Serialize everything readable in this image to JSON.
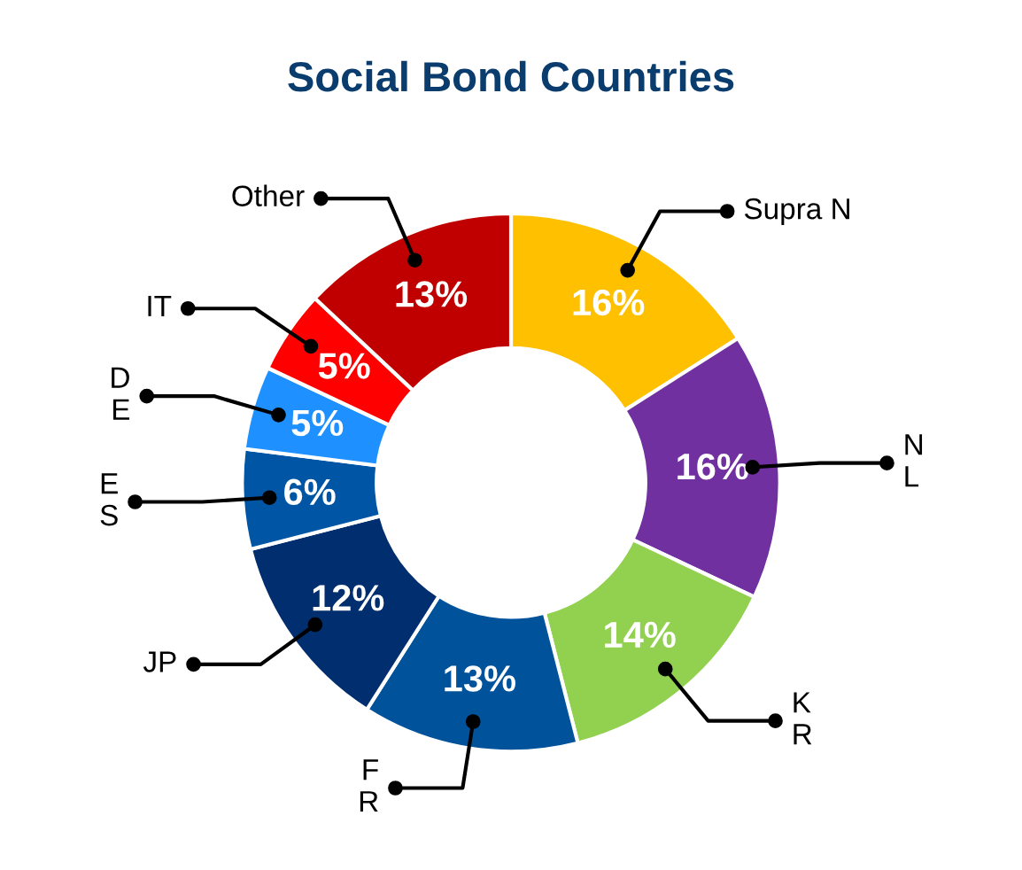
{
  "chart_data": {
    "type": "donut",
    "title": "Social Bond Countries",
    "categories": [
      "Supra N",
      "N\nL",
      "K\nR",
      "F\nR",
      "JP",
      "E\nS",
      "D\nE",
      "IT",
      "Other"
    ],
    "values": [
      16,
      16,
      14,
      13,
      12,
      6,
      5,
      5,
      13
    ],
    "value_labels": [
      "16%",
      "16%",
      "14%",
      "13%",
      "12%",
      "6%",
      "5%",
      "5%",
      "13%"
    ],
    "colors": [
      "#ffc000",
      "#7030a0",
      "#92d050",
      "#00529b",
      "#002e6e",
      "#0055a5",
      "#1e90ff",
      "#ff0000",
      "#c00000"
    ],
    "legend": false
  }
}
